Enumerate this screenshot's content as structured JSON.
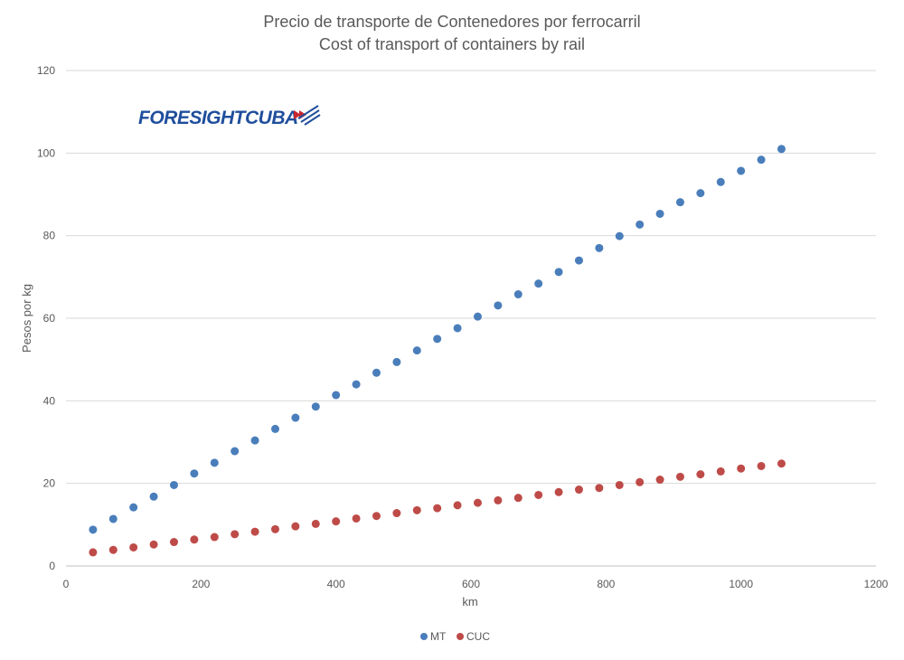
{
  "chart_data": {
    "type": "scatter",
    "title": "Precio de transporte de Contenedores por ferrocarril",
    "subtitle": "Cost of transport of containers by rail",
    "xlabel": "km",
    "ylabel": "Pesos por kg",
    "xlim": [
      0,
      1200
    ],
    "ylim": [
      0,
      120
    ],
    "xticks": [
      0,
      200,
      400,
      600,
      800,
      1000,
      1200
    ],
    "yticks": [
      0,
      20,
      40,
      60,
      80,
      100,
      120
    ],
    "grid": "horizontal",
    "legend_position": "bottom",
    "x": [
      40,
      70,
      100,
      130,
      160,
      190,
      220,
      250,
      280,
      310,
      340,
      370,
      400,
      430,
      460,
      490,
      520,
      550,
      580,
      610,
      640,
      670,
      700,
      730,
      760,
      790,
      820,
      850,
      880,
      910,
      940,
      970,
      1000,
      1030,
      1060
    ],
    "series": [
      {
        "name": "MT",
        "color": "#4a7ebb",
        "values": [
          8.8,
          11.4,
          14.2,
          16.8,
          19.6,
          22.4,
          25.0,
          27.8,
          30.4,
          33.2,
          35.9,
          38.6,
          41.4,
          44.0,
          46.8,
          49.4,
          52.2,
          55.0,
          57.6,
          60.4,
          63.1,
          65.8,
          68.4,
          71.2,
          74.0,
          77.0,
          79.9,
          82.7,
          85.3,
          88.1,
          90.3,
          93.0,
          95.7,
          98.4,
          101.0
        ]
      },
      {
        "name": "CUC",
        "color": "#be4b48",
        "values": [
          3.3,
          3.9,
          4.5,
          5.2,
          5.8,
          6.4,
          7.0,
          7.7,
          8.3,
          8.9,
          9.6,
          10.2,
          10.8,
          11.5,
          12.1,
          12.8,
          13.5,
          14.0,
          14.7,
          15.3,
          15.9,
          16.5,
          17.2,
          17.9,
          18.5,
          18.9,
          19.6,
          20.3,
          20.9,
          21.6,
          22.2,
          22.9,
          23.6,
          24.2,
          24.8
        ]
      }
    ]
  },
  "logo": {
    "text": "FORESIGHTCUBA"
  }
}
